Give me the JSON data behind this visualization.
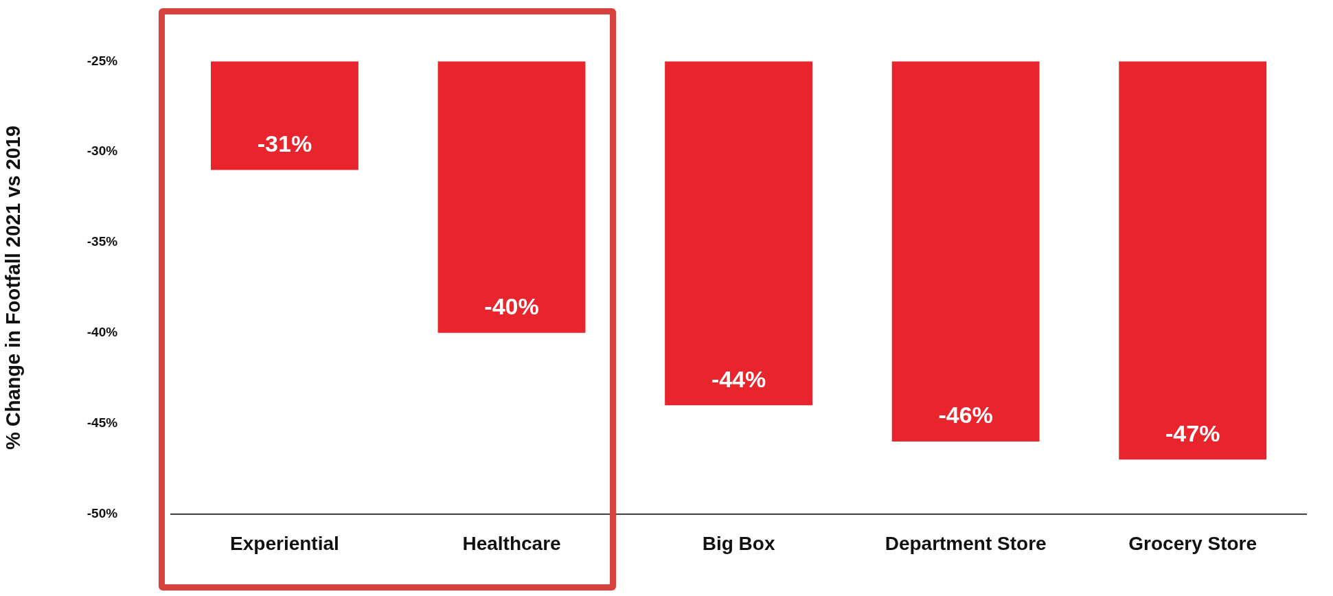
{
  "chart_data": {
    "type": "bar",
    "ylabel": "% Change in Footfall 2021 vs 2019",
    "categories": [
      "Experiential",
      "Healthcare",
      "Big Box",
      "Department Store",
      "Grocery Store"
    ],
    "values": [
      -31,
      -40,
      -44,
      -46,
      -47
    ],
    "value_labels": [
      "-31%",
      "-40%",
      "-44%",
      "-46%",
      "-47%"
    ],
    "color": "#e8252c",
    "ylim": [
      -50,
      -25
    ],
    "yticks": [
      {
        "value": -50,
        "label": "-50%"
      },
      {
        "value": -45,
        "label": "-45%"
      },
      {
        "value": -40,
        "label": "-40%"
      },
      {
        "value": -35,
        "label": "-35%"
      },
      {
        "value": -30,
        "label": "-30%"
      },
      {
        "value": -25,
        "label": "-25%"
      }
    ],
    "grid": false,
    "legend": false
  }
}
